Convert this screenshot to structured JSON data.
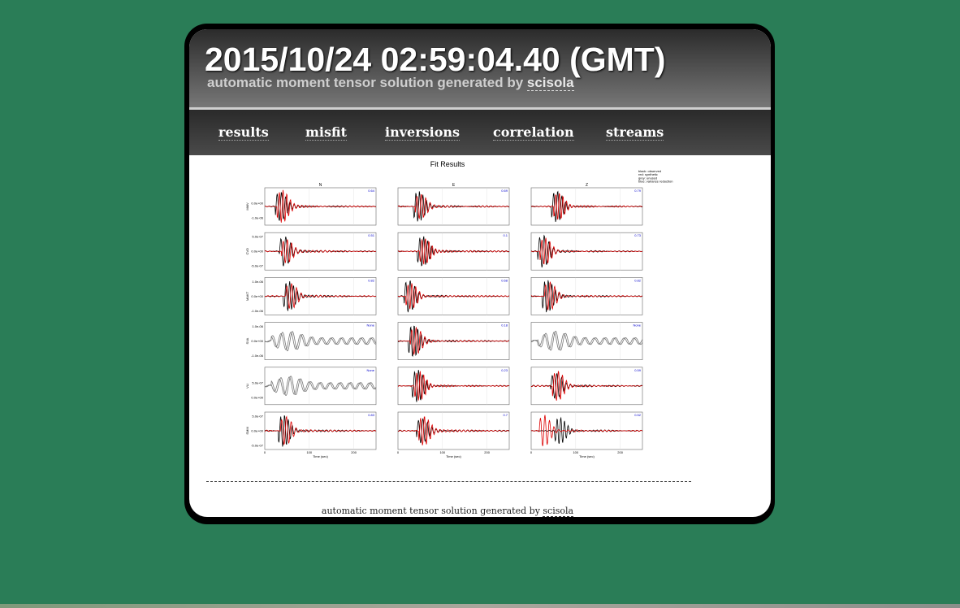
{
  "header": {
    "title": "2015/10/24 02:59:04.40 (GMT)",
    "subtitle_prefix": "automatic moment tensor solution generated by ",
    "subtitle_link": "scisola"
  },
  "nav": {
    "tabs": [
      {
        "label": "results"
      },
      {
        "label": "misfit"
      },
      {
        "label": "inversions"
      },
      {
        "label": "correlation"
      },
      {
        "label": "streams"
      }
    ]
  },
  "chart_data": {
    "type": "line",
    "title": "Fit Results",
    "columns": [
      "N",
      "E",
      "Z"
    ],
    "legend": [
      "black: observed",
      "red: synthetic",
      "grey: unused",
      "blue: variance reduction"
    ],
    "legend_placement": "top-right",
    "xlabel": "Time (sec)",
    "x_ticks": [
      "0",
      "100",
      "200"
    ],
    "xlim": [
      0,
      250
    ],
    "rows": [
      {
        "station": "MMV",
        "y_ticks": [
          "0.0e+00",
          "-1.0e-06"
        ],
        "vr": [
          "0.64",
          "0.69",
          "0.79"
        ]
      },
      {
        "station": "CVD",
        "y_ticks": [
          "5.0e-07",
          "0.0e+00",
          "-5.0e-07"
        ],
        "vr": [
          "0.51",
          "0.1",
          "0.73"
        ]
      },
      {
        "station": "MAKT",
        "y_ticks": [
          "1.0e-06",
          "0.0e+00",
          "-1.0e-06"
        ],
        "vr": [
          "0.82",
          "0.68",
          "0.82"
        ]
      },
      {
        "station": "SVA",
        "y_ticks": [
          "1.0e-06",
          "0.0e+00",
          "-1.0e-06"
        ],
        "vr": [
          "None",
          "0.18",
          "None"
        ]
      },
      {
        "station": "VLI",
        "y_ticks": [
          "5.0e-07",
          "0.0e+00"
        ],
        "vr": [
          "None",
          "0.23",
          "0.59"
        ]
      },
      {
        "station": "SMM",
        "y_ticks": [
          "5.0e-07",
          "0.0e+00",
          "-5.0e-07"
        ],
        "vr": [
          "0.83",
          "0.7",
          "0.52"
        ]
      }
    ],
    "colors": {
      "observed": "#000000",
      "synthetic": "#dd0000",
      "unused": "#777777",
      "variance_reduction": "#0000cc"
    }
  },
  "footer": {
    "text_prefix": "automatic moment tensor solution generated by ",
    "link": "scisola"
  }
}
